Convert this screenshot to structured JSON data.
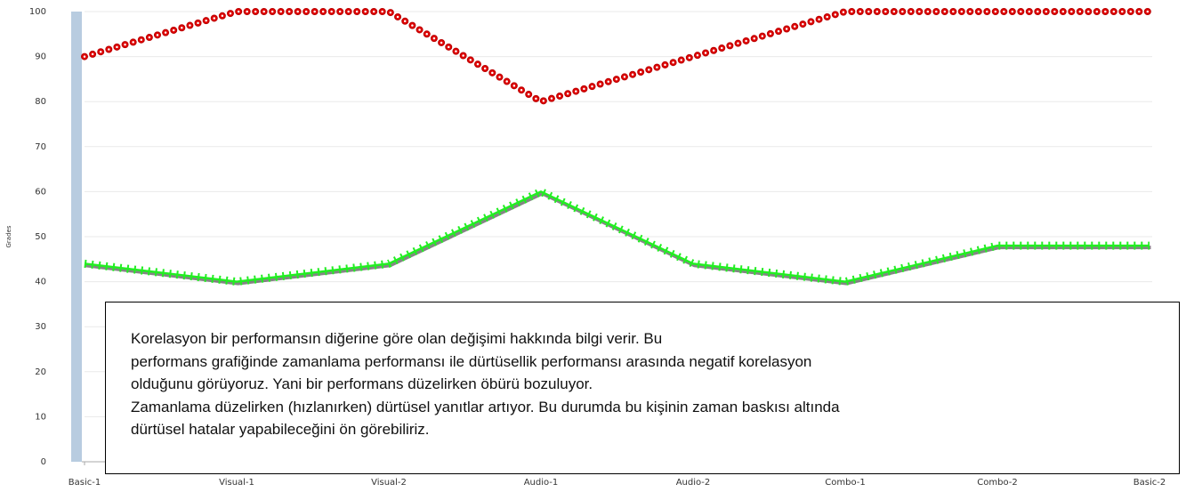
{
  "chart_data": {
    "type": "line",
    "y_label": "Grades",
    "categories": [
      "Basic-1",
      "Visual-1",
      "Visual-2",
      "Audio-1",
      "Audio-2",
      "Combo-1",
      "Combo-2",
      "Basic-2"
    ],
    "series": [
      {
        "color": "#e00000",
        "values": [
          90,
          100,
          100,
          80,
          90,
          100,
          100,
          100
        ]
      },
      {
        "color": "#22ee22",
        "values": [
          44,
          40,
          44,
          60,
          44,
          40,
          48,
          48
        ]
      }
    ],
    "ylim": [
      0,
      100
    ],
    "yticks": [
      0,
      10,
      20,
      30,
      40,
      50,
      60,
      70,
      80,
      90,
      100
    ],
    "grid": true,
    "note": [
      "Korelasyon bir performansın diğerine göre olan değişimi hakkında bilgi verir. Bu",
      "performans grafiğinde zamanlama performansı ile dürtüsellik performansı arasında negatif korelasyon",
      "olduğunu görüyoruz. Yani bir performans düzelirken öbürü bozuluyor.",
      "Zamanlama düzelirken (hızlanırken) dürtüsel yanıtlar artıyor. Bu durumda bu kişinin zaman baskısı altında",
      "dürtüsel hatalar yapabileceğini ön görebiliriz."
    ]
  }
}
